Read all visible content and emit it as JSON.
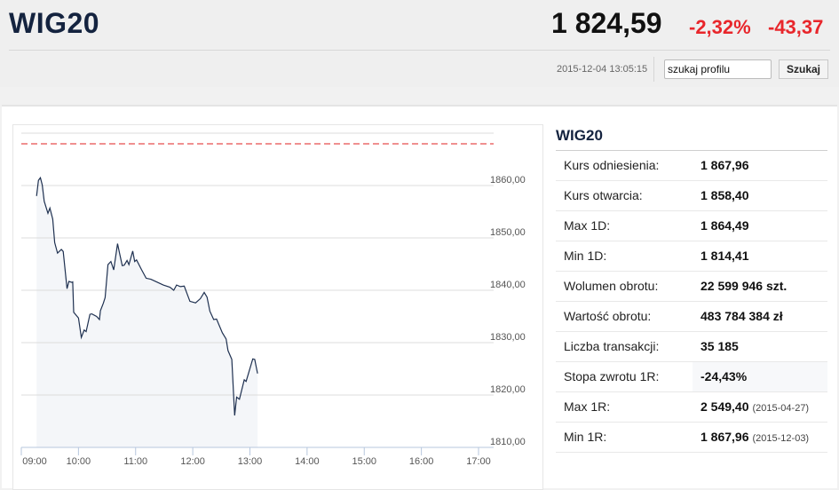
{
  "header": {
    "title": "WIG20",
    "price": "1 824,59",
    "change_pct": "-2,32%",
    "change_abs": "-43,37",
    "timestamp": "2015-12-04 13:05:15",
    "search_value": "szukaj profilu",
    "search_button": "Szukaj"
  },
  "colors": {
    "negative": "#e8262b",
    "line": "#1e3050",
    "fill": "#f4f6f9",
    "reference": "#e02020"
  },
  "info": {
    "title": "WIG20",
    "rows": [
      {
        "label": "Kurs odniesienia:",
        "value": "1 867,96"
      },
      {
        "label": "Kurs otwarcia:",
        "value": "1 858,40"
      },
      {
        "label": "Max 1D:",
        "value": "1 864,49"
      },
      {
        "label": "Min 1D:",
        "value": "1 814,41"
      },
      {
        "label": "Wolumen obrotu:",
        "value": "22 599 946 szt."
      },
      {
        "label": "Wartość obrotu:",
        "value": "483 784 384 zł"
      },
      {
        "label": "Liczba transakcji:",
        "value": "35 185"
      },
      {
        "label": "Stopa zwrotu 1R:",
        "value": "-24,43%"
      },
      {
        "label": "Max 1R:",
        "value": "2 549,40",
        "date": "(2015-04-27)"
      },
      {
        "label": "Min 1R:",
        "value": "1 867,96",
        "date": "(2015-12-03)"
      }
    ]
  },
  "chart_data": {
    "type": "area",
    "xlabel": "",
    "ylabel": "",
    "x_ticks": [
      "09:00",
      "10:00",
      "11:00",
      "12:00",
      "13:00",
      "14:00",
      "15:00",
      "16:00",
      "17:00"
    ],
    "y_ticks": [
      "1810,00",
      "1820,00",
      "1830,00",
      "1840,00",
      "1850,00",
      "1860,00"
    ],
    "y_tick_values": [
      1810,
      1820,
      1830,
      1840,
      1850,
      1860
    ],
    "xlim": [
      "09:00",
      "17:00"
    ],
    "ylim": [
      1810,
      1870
    ],
    "reference_line": 1867.96,
    "grid": true,
    "x": [
      "09:16",
      "09:18",
      "09:20",
      "09:22",
      "09:24",
      "09:28",
      "09:30",
      "09:33",
      "09:35",
      "09:38",
      "09:42",
      "09:44",
      "09:48",
      "09:50",
      "09:53",
      "09:54",
      "09:55",
      "10:00",
      "10:03",
      "10:06",
      "10:08",
      "10:12",
      "10:14",
      "10:19",
      "10:22",
      "10:23",
      "10:26",
      "10:28",
      "10:31",
      "10:34",
      "10:37",
      "10:41",
      "10:43",
      "10:46",
      "10:48",
      "10:51",
      "10:53",
      "10:57",
      "10:59",
      "11:01",
      "11:06",
      "11:11",
      "11:16",
      "11:22",
      "11:29",
      "11:36",
      "11:40",
      "11:43",
      "11:47",
      "11:51",
      "11:57",
      "12:03",
      "12:08",
      "12:12",
      "12:15",
      "12:18",
      "12:22",
      "12:25",
      "12:31",
      "12:35",
      "12:37",
      "12:41",
      "12:44",
      "12:46",
      "12:49",
      "12:54",
      "12:56",
      "13:03",
      "13:05",
      "13:08"
    ],
    "values": [
      1858.0,
      1861.0,
      1861.5,
      1860.1,
      1857.0,
      1854.7,
      1855.7,
      1853.6,
      1849.1,
      1847.1,
      1847.8,
      1847.4,
      1840.3,
      1841.7,
      1841.5,
      1841.6,
      1835.8,
      1834.7,
      1831.0,
      1832.4,
      1832.1,
      1835.4,
      1835.5,
      1835.0,
      1834.4,
      1836.1,
      1837.5,
      1838.6,
      1844.9,
      1845.5,
      1843.9,
      1848.9,
      1847.2,
      1844.7,
      1844.8,
      1845.7,
      1844.9,
      1847.5,
      1845.5,
      1845.8,
      1844.0,
      1842.3,
      1842.1,
      1841.6,
      1841.0,
      1840.6,
      1840.0,
      1841.0,
      1840.7,
      1840.8,
      1837.9,
      1837.6,
      1838.4,
      1839.6,
      1838.7,
      1836.0,
      1834.4,
      1834.5,
      1831.9,
      1830.7,
      1828.5,
      1826.8,
      1816.1,
      1819.6,
      1819.2,
      1822.9,
      1822.6,
      1826.9,
      1826.8,
      1824.1
    ]
  }
}
